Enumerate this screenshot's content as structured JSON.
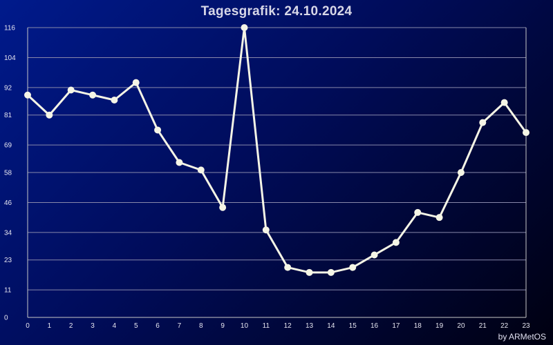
{
  "chart_data": {
    "type": "line",
    "title": "Tagesgrafik: 24.10.2024",
    "xlabel": "",
    "ylabel": "",
    "x": [
      0,
      1,
      2,
      3,
      4,
      5,
      6,
      7,
      8,
      9,
      10,
      11,
      12,
      13,
      14,
      15,
      16,
      17,
      18,
      19,
      20,
      21,
      22,
      23
    ],
    "series": [
      {
        "values": [
          89,
          81,
          91,
          89,
          87,
          94,
          75,
          62,
          59,
          44,
          116,
          35,
          20,
          18,
          18,
          20,
          25,
          30,
          42,
          40,
          58,
          78,
          86,
          74
        ]
      }
    ],
    "xlim": [
      0,
      23
    ],
    "ylim": [
      0,
      116
    ],
    "y_ticks": [
      "0",
      "11",
      "23",
      "34",
      "46",
      "58",
      "69",
      "81",
      "92",
      "104",
      "116"
    ],
    "x_ticks": [
      "0",
      "1",
      "2",
      "3",
      "4",
      "5",
      "6",
      "7",
      "8",
      "9",
      "10",
      "11",
      "12",
      "13",
      "14",
      "15",
      "16",
      "17",
      "18",
      "19",
      "20",
      "21",
      "22",
      "23"
    ],
    "grid": "horizontal",
    "colors": {
      "line": "#f5f5e6",
      "marker": "#f5f5e6",
      "grid": "#8888aa",
      "axis": "#c8c8c8"
    }
  },
  "footer": {
    "credit": "by ARMetOS"
  }
}
